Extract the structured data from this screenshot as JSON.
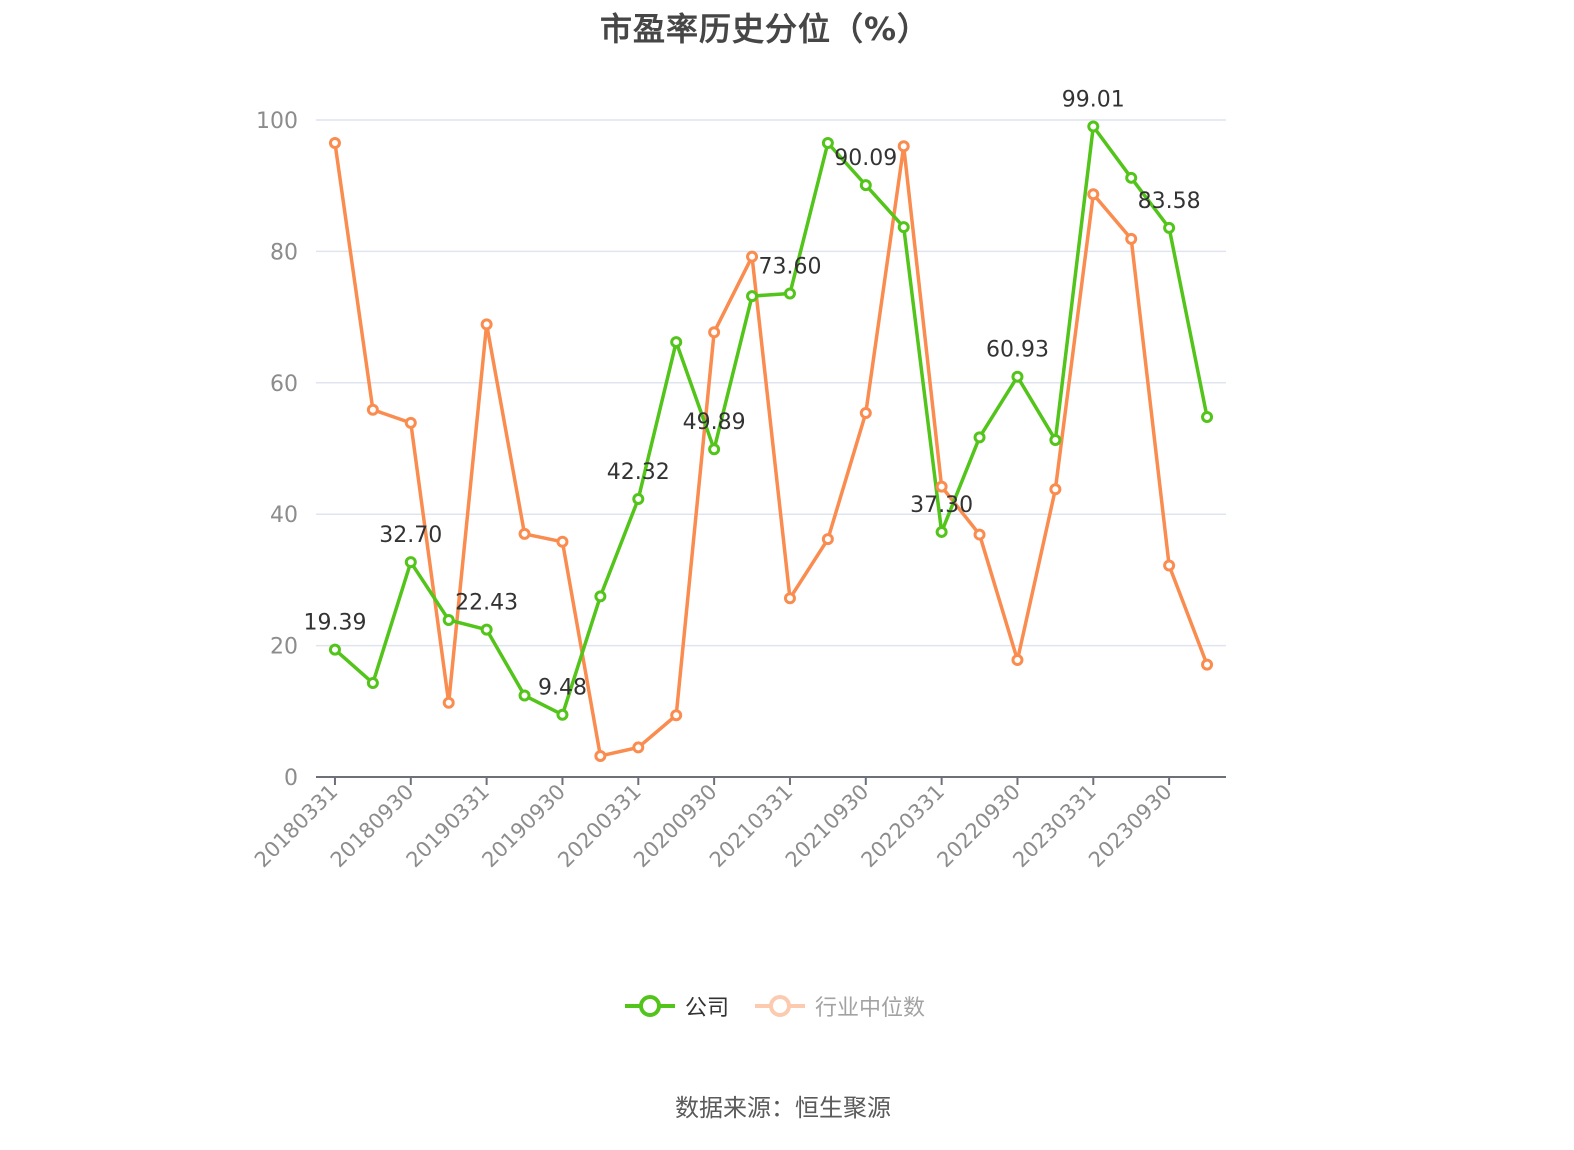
{
  "title": "市盈率历史分位（%）",
  "source_text": "数据来源：恒生聚源",
  "legend": [
    {
      "label": "公司",
      "color": "#52c41a",
      "active": true
    },
    {
      "label": "行业中位数",
      "color": "#fa8c4f",
      "active": false
    }
  ],
  "chart_data": {
    "type": "line",
    "title": "市盈率历史分位（%）",
    "xlabel": "",
    "ylabel": "",
    "ylim": [
      0,
      100
    ],
    "yticks": [
      0,
      20,
      40,
      60,
      80,
      100
    ],
    "grid": true,
    "legend_position": "bottom",
    "categories": [
      "20180331",
      "20180630",
      "20180930",
      "20181231",
      "20190331",
      "20190630",
      "20190930",
      "20191231",
      "20200331",
      "20200630",
      "20200930",
      "20201231",
      "20210331",
      "20210630",
      "20210930",
      "20211231",
      "20220331",
      "20220630",
      "20220930",
      "20221231",
      "20230331",
      "20230630",
      "20230930",
      "20231231"
    ],
    "visible_xtick_labels": [
      "20180331",
      "20180930",
      "20190331",
      "20190930",
      "20200331",
      "20200930",
      "20210331",
      "20210930",
      "20220331",
      "20220930",
      "20230331",
      "20230930"
    ],
    "series": [
      {
        "name": "公司",
        "color": "#52c41a",
        "values": [
          19.39,
          14.3,
          32.7,
          23.9,
          22.43,
          12.4,
          9.48,
          27.5,
          42.32,
          66.2,
          49.89,
          73.2,
          73.6,
          96.5,
          90.09,
          83.7,
          37.3,
          51.7,
          60.93,
          51.3,
          99.01,
          91.2,
          83.58,
          54.8
        ],
        "data_labels": {
          "0": "19.39",
          "2": "32.70",
          "4": "22.43",
          "6": "9.48",
          "8": "42.32",
          "10": "49.89",
          "12": "73.60",
          "14": "90.09",
          "16": "37.30",
          "18": "60.93",
          "20": "99.01",
          "22": "83.58"
        }
      },
      {
        "name": "行业中位数",
        "color": "#fa8c4f",
        "values": [
          96.5,
          55.9,
          53.9,
          11.3,
          68.9,
          37.0,
          35.8,
          3.2,
          4.5,
          9.4,
          67.7,
          79.2,
          27.2,
          36.2,
          55.4,
          96.0,
          44.2,
          36.9,
          17.8,
          43.8,
          88.7,
          81.9,
          32.2,
          17.1
        ]
      }
    ]
  }
}
